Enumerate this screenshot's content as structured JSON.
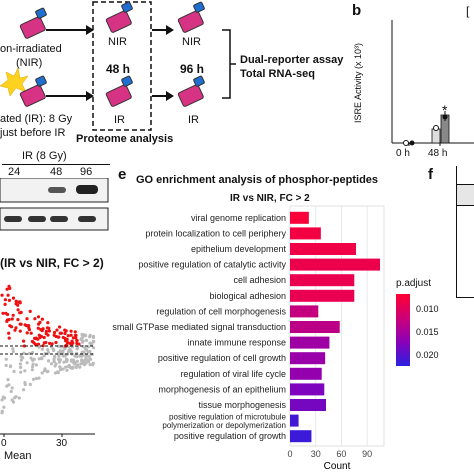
{
  "schematic": {
    "nir_group": "on-irradiated",
    "nir_group_abbr": "(NIR)",
    "ir_group": "ated (IR): 8 Gy",
    "ir_group_note": "just before IR",
    "nir_label": "NIR",
    "ir_label": "IR",
    "time_48": "48 h",
    "time_96": "96 h",
    "proteome_label": "Proteome analysis",
    "assay_line1": "Dual-reporter assay",
    "assay_line2": "Total RNA-seq"
  },
  "panel_b": {
    "letter": "b",
    "ylabel": "ISRE Activity (x 10³)",
    "x_ticks": [
      "0 h",
      "48 h"
    ],
    "significance": "*",
    "bars": [
      {
        "group": "0 h",
        "condition": "NIR",
        "value": 0.0
      },
      {
        "group": "0 h",
        "condition": "IR",
        "value": 0.0
      },
      {
        "group": "48 h",
        "condition": "NIR",
        "value": 0.6
      },
      {
        "group": "48 h",
        "condition": "IR",
        "value": 1.2
      }
    ],
    "partial_letter": "["
  },
  "western": {
    "header": "IR (8 Gy)",
    "lanes": [
      "24",
      "48",
      "96"
    ]
  },
  "ma_plot": {
    "title": "(IR vs NIR, FC > 2)",
    "xlabel": "Mean",
    "x_ticks": [
      "0",
      "30"
    ]
  },
  "panel_e": {
    "letter": "e",
    "title": "GO enrichment analysis of phosphor-peptides",
    "subtitle": "IR vs NIR, FC > 2"
  },
  "panel_f": {
    "letter": "f"
  },
  "chart_data": {
    "type": "bar",
    "orientation": "horizontal",
    "title": "IR vs NIR, FC > 2",
    "xlabel": "Count",
    "ylabel": "",
    "xlim": [
      0,
      105
    ],
    "x_ticks": [
      0,
      30,
      60,
      90
    ],
    "grid": true,
    "legend": {
      "title": "p.adjust",
      "ticks": [
        "0.010",
        "0.015",
        "0.020"
      ],
      "range": [
        0.0065,
        0.0235
      ],
      "placement": "right"
    },
    "categories": [
      "viral genome replication",
      "protein localization to cell periphery",
      "epithelium development",
      "positive regulation of catalytic activity",
      "cell adhesion",
      "biological adhesion",
      "regulation of cell morphogenesis",
      "small GTPase mediated signal transduction",
      "innate immune response",
      "positive regulation of cell growth",
      "regulation of viral life cycle",
      "morphogenesis of an epithelium",
      "tissue morphogenesis",
      "positive regulation of microtubule polymerization or depolymerization",
      "positive regulation of growth"
    ],
    "category_lines": [
      [
        "viral genome replication"
      ],
      [
        "protein localization to cell periphery"
      ],
      [
        "epithelium development"
      ],
      [
        "positive regulation of catalytic activity"
      ],
      [
        "cell adhesion"
      ],
      [
        "biological adhesion"
      ],
      [
        "regulation of cell morphogenesis"
      ],
      [
        "small GTPase mediated signal transduction"
      ],
      [
        "innate immune response"
      ],
      [
        "positive regulation of cell growth"
      ],
      [
        "regulation of viral life cycle"
      ],
      [
        "morphogenesis of an epithelium"
      ],
      [
        "tissue morphogenesis"
      ],
      [
        "positive regulation of microtubule",
        "polymerization or depolymerization"
      ],
      [
        "positive regulation of growth"
      ]
    ],
    "values": [
      22,
      36,
      77,
      105,
      75,
      75,
      33,
      58,
      46,
      41,
      37,
      40,
      42,
      10,
      25
    ],
    "p_adjust": [
      0.0072,
      0.0078,
      0.0082,
      0.0085,
      0.0088,
      0.009,
      0.0128,
      0.0135,
      0.016,
      0.0165,
      0.017,
      0.0185,
      0.019,
      0.022,
      0.0225
    ]
  }
}
